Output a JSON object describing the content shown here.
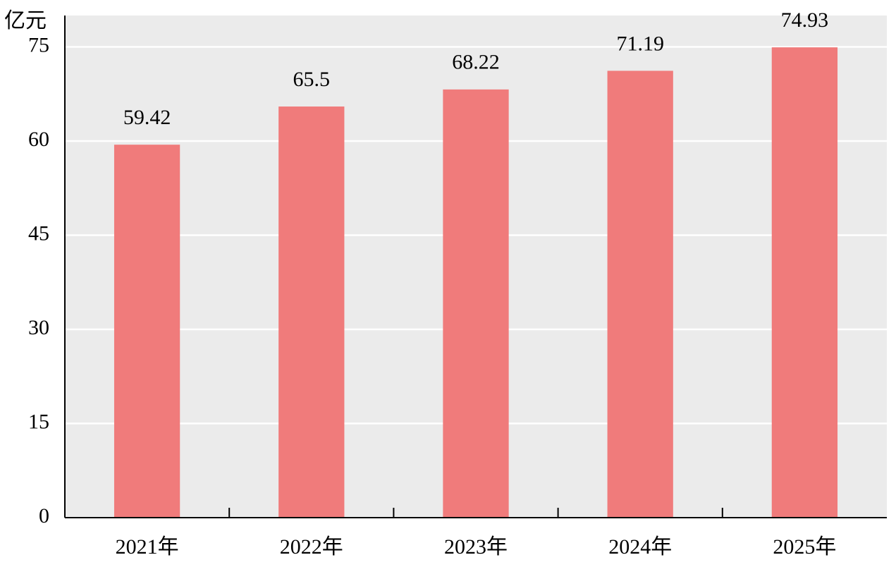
{
  "chart_data": {
    "type": "bar",
    "unit_label": "亿元",
    "categories": [
      "2021年",
      "2022年",
      "2023年",
      "2024年",
      "2025年"
    ],
    "values": [
      59.42,
      65.5,
      68.22,
      71.19,
      74.93
    ],
    "color": "#f07b7b",
    "background": "#ebebeb",
    "ylim": [
      0,
      80
    ],
    "yticks": [
      0,
      15,
      30,
      45,
      60,
      75
    ],
    "grid": true
  }
}
